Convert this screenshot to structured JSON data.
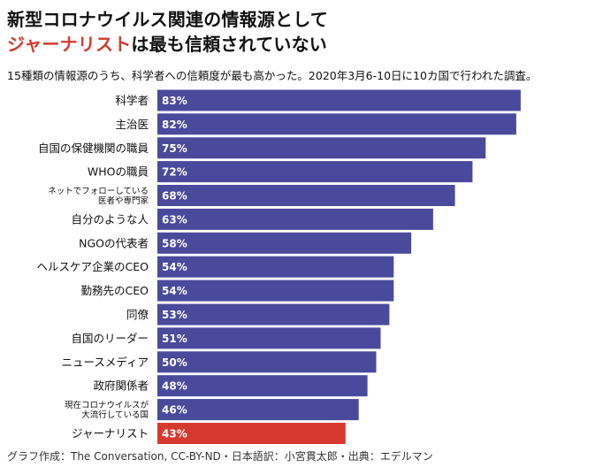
{
  "title": {
    "line1": "新型コロナウイルス関連の情報源として",
    "line2_highlight": "ジャーナリスト",
    "line2_rest": "は最も信頼されていない"
  },
  "subtitle": "15種類の情報源のうち、科学者への信頼度が最も高かった。2020年3月6-10日に10カ国で行われた調査。",
  "footer": "グラフ作成：The Conversation, CC-BY-ND・日本語訳：小宮貫太郎・出典：エデルマン",
  "colors": {
    "bar": "#4a4a9c",
    "highlight": "#d63a2f",
    "label_text": "#ffffff"
  },
  "chart_data": {
    "type": "bar",
    "orientation": "horizontal",
    "categories": [
      [
        "科学者"
      ],
      [
        "主治医"
      ],
      [
        "自国の保健機関の職員"
      ],
      [
        "WHOの職員"
      ],
      [
        "ネットでフォローしている",
        "医者や専門家"
      ],
      [
        "自分のような人"
      ],
      [
        "NGOの代表者"
      ],
      [
        "ヘルスケア企業のCEO"
      ],
      [
        "勤務先のCEO"
      ],
      [
        "同僚"
      ],
      [
        "自国のリーダー"
      ],
      [
        "ニュースメディア"
      ],
      [
        "政府関係者"
      ],
      [
        "現在コロナウイルスが",
        "大流行している国"
      ],
      [
        "ジャーナリスト"
      ]
    ],
    "values": [
      83,
      82,
      75,
      72,
      68,
      63,
      58,
      54,
      54,
      53,
      51,
      50,
      48,
      46,
      43
    ],
    "data_labels": [
      "83%",
      "82%",
      "75%",
      "72%",
      "68%",
      "63%",
      "58%",
      "54%",
      "54%",
      "53%",
      "51%",
      "50%",
      "48%",
      "46%",
      "43%"
    ],
    "highlight_index": 14,
    "xlim": [
      0,
      100
    ],
    "grid": false,
    "title": "",
    "xlabel": "",
    "ylabel": ""
  }
}
